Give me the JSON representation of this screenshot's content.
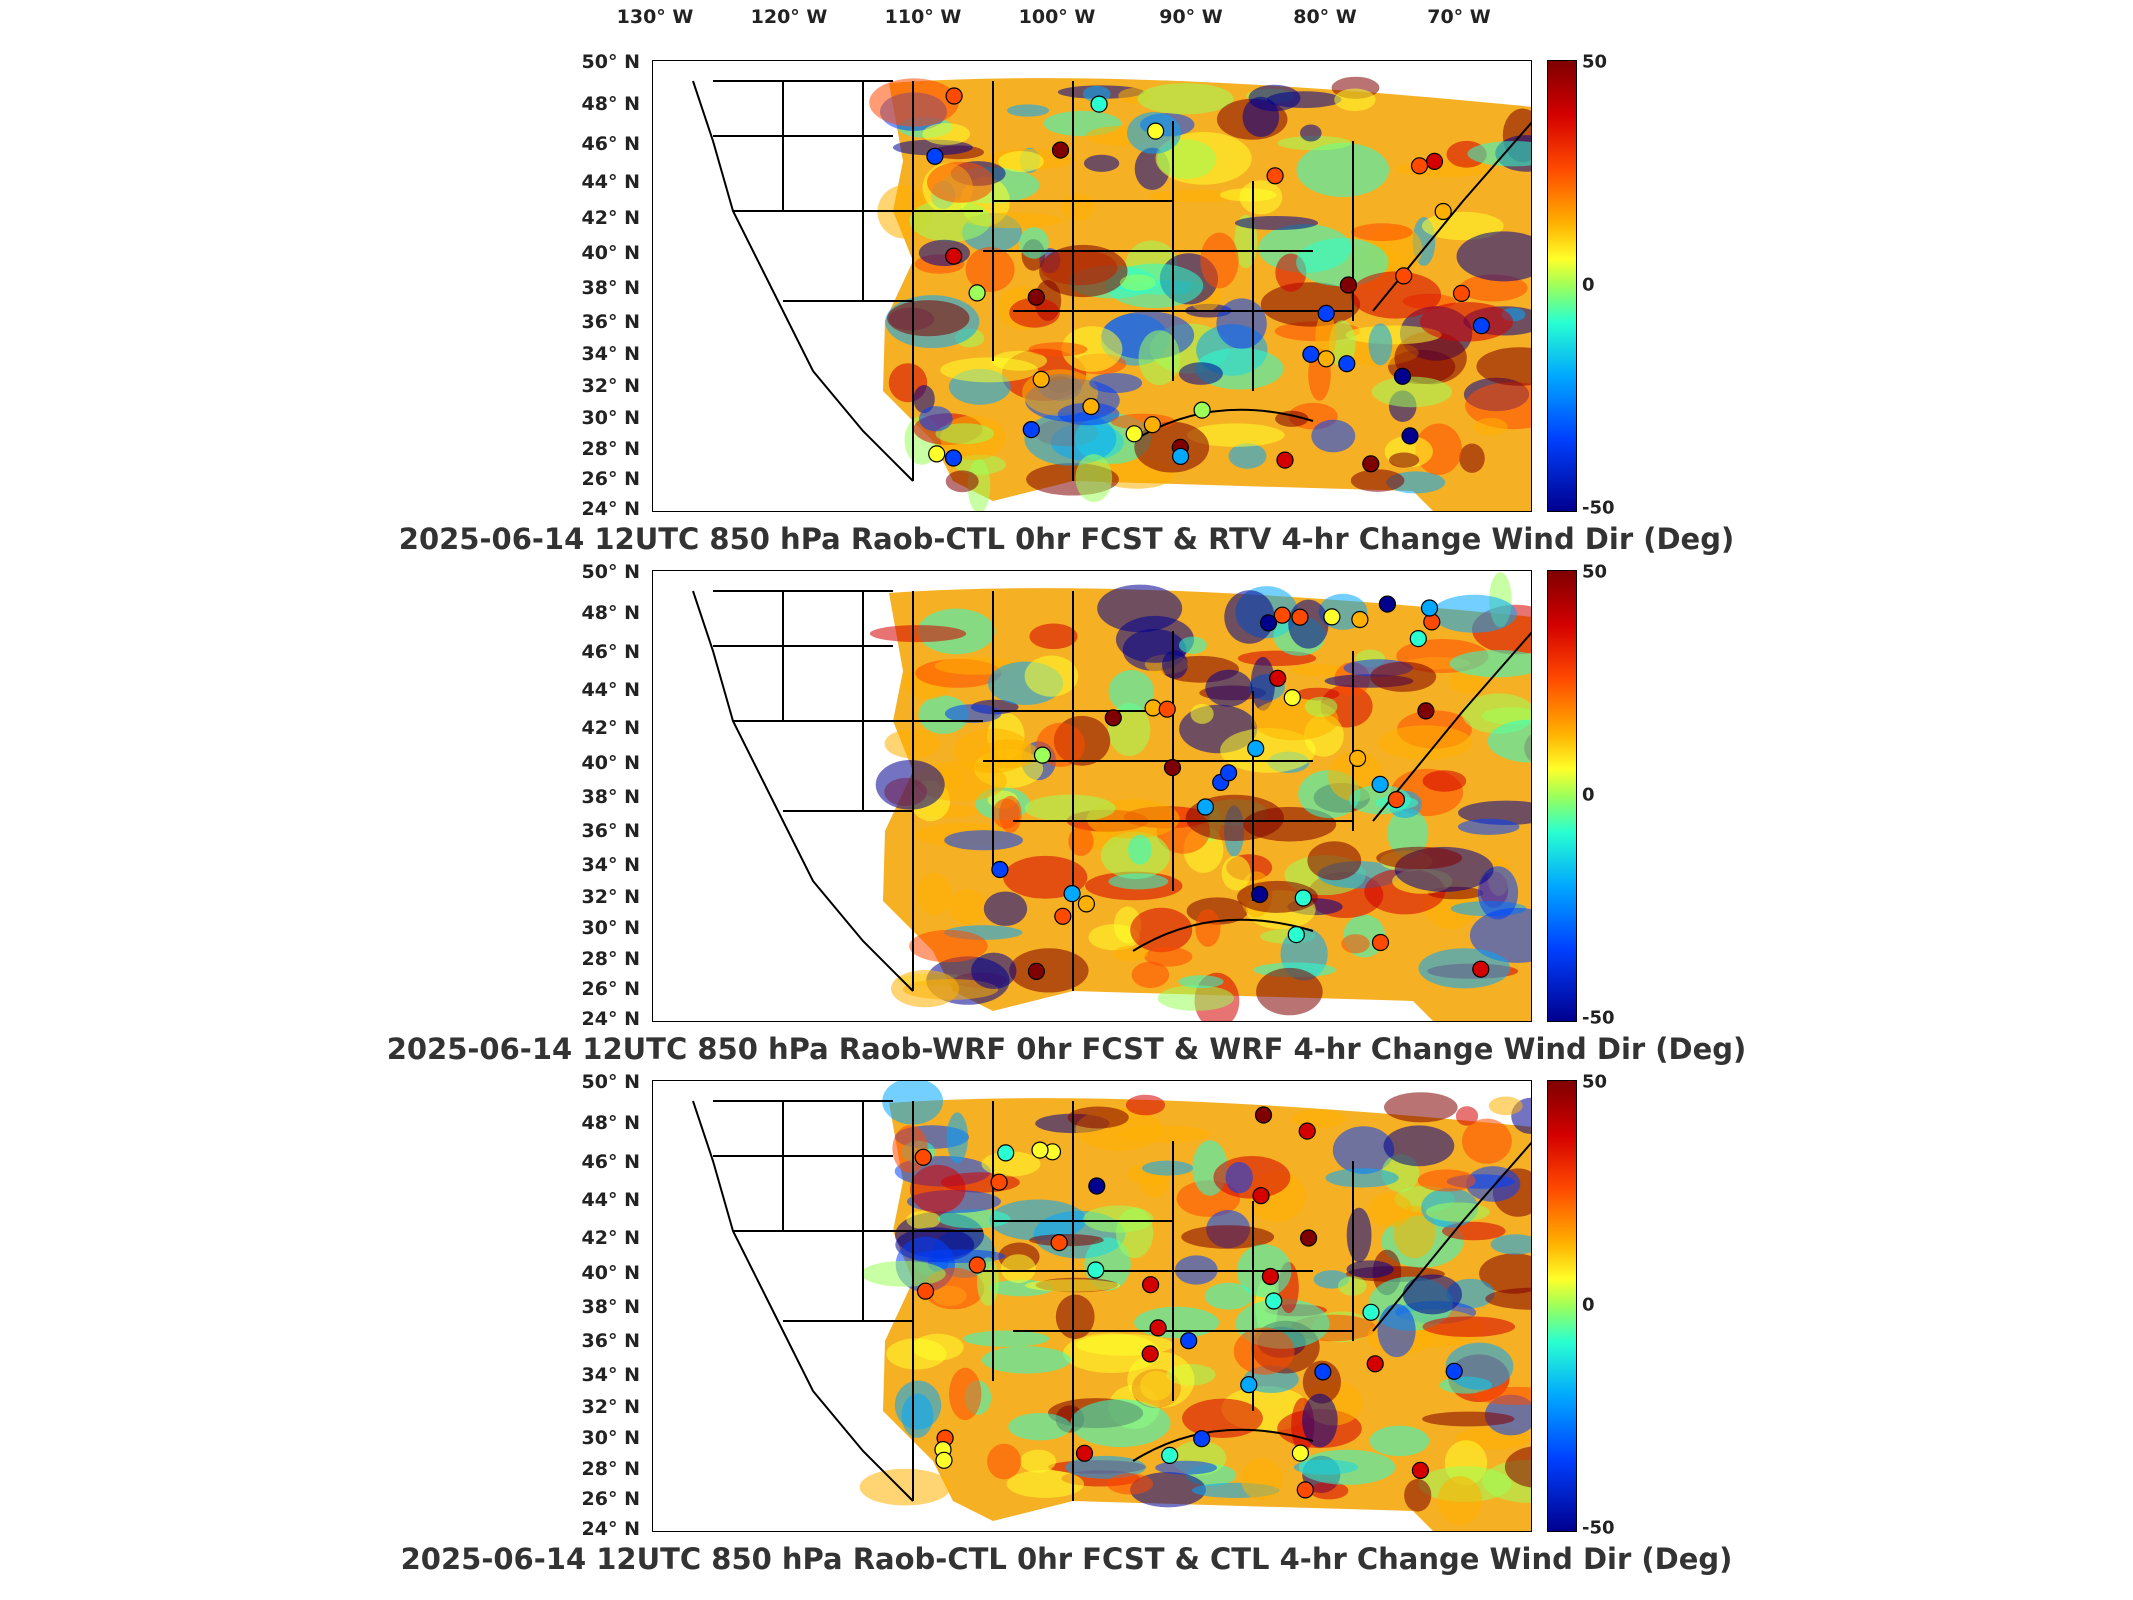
{
  "longitude_labels": [
    "130° W",
    "120° W",
    "110° W",
    "100° W",
    "90° W",
    "80° W",
    "70° W"
  ],
  "latitude_labels": [
    "50° N",
    "48° N",
    "46° N",
    "44° N",
    "42° N",
    "40° N",
    "38° N",
    "36° N",
    "34° N",
    "32° N",
    "30° N",
    "28° N",
    "26° N",
    "24° N"
  ],
  "colorbar": {
    "max_label": "50",
    "mid_label": "0",
    "min_label": "-50",
    "colormap": "jet"
  },
  "panels": [
    {
      "title": "2025-06-14 12UTC 850 hPa Raob-CTL 0hr FCST & RTV 4-hr Change Wind Dir (Deg)"
    },
    {
      "title": "2025-06-14 12UTC 850 hPa Raob-WRF 0hr FCST & WRF 4-hr Change Wind Dir (Deg)"
    },
    {
      "title": "2025-06-14 12UTC 850 hPa Raob-CTL 0hr FCST & CTL 4-hr Change Wind Dir (Deg)"
    }
  ]
}
